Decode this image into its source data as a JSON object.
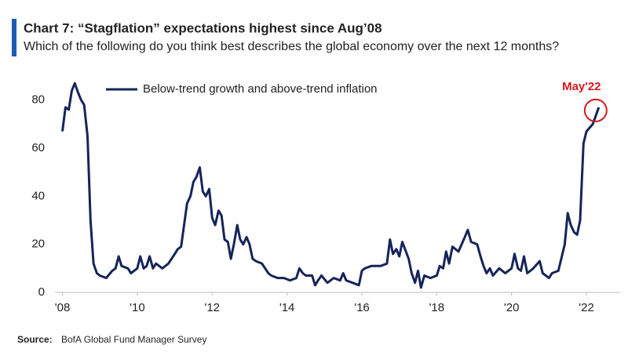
{
  "chart_data": {
    "type": "line",
    "title": "Chart 7: “Stagflation” expectations highest since Aug’08",
    "subtitle": "Which of the following do you think best describes the global economy over the next 12 months?",
    "annotation": "May'22",
    "source_label": "Source:",
    "source": "BofA Global Fund Manager Survey",
    "legend": "top-left",
    "xlim": [
      2007.8,
      2022.9
    ],
    "xticks": [
      {
        "value": 2008,
        "label": "'08"
      },
      {
        "value": 2010,
        "label": "'10"
      },
      {
        "value": 2012,
        "label": "'12"
      },
      {
        "value": 2014,
        "label": "'14"
      },
      {
        "value": 2016,
        "label": "'16"
      },
      {
        "value": 2018,
        "label": "'18"
      },
      {
        "value": 2020,
        "label": "'20"
      },
      {
        "value": 2022,
        "label": "'22"
      }
    ],
    "ylim": [
      0,
      90
    ],
    "yticks": [
      0,
      20,
      40,
      60,
      80
    ],
    "x": [
      2008.0,
      2008.08,
      2008.17,
      2008.25,
      2008.33,
      2008.42,
      2008.5,
      2008.58,
      2008.67,
      2008.75,
      2008.83,
      2008.92,
      2009.0,
      2009.17,
      2009.33,
      2009.42,
      2009.5,
      2009.58,
      2009.75,
      2009.83,
      2010.0,
      2010.08,
      2010.17,
      2010.25,
      2010.33,
      2010.42,
      2010.5,
      2010.67,
      2010.83,
      2011.0,
      2011.08,
      2011.17,
      2011.25,
      2011.33,
      2011.42,
      2011.5,
      2011.58,
      2011.67,
      2011.75,
      2011.83,
      2011.92,
      2012.0,
      2012.08,
      2012.17,
      2012.25,
      2012.33,
      2012.42,
      2012.5,
      2012.58,
      2012.67,
      2012.75,
      2012.83,
      2012.92,
      2013.0,
      2013.08,
      2013.17,
      2013.33,
      2013.5,
      2013.58,
      2013.75,
      2013.92,
      2014.08,
      2014.25,
      2014.33,
      2014.42,
      2014.5,
      2014.67,
      2014.75,
      2014.83,
      2014.92,
      2015.08,
      2015.25,
      2015.42,
      2015.5,
      2015.58,
      2015.75,
      2015.92,
      2016.0,
      2016.08,
      2016.25,
      2016.5,
      2016.67,
      2016.75,
      2016.83,
      2016.92,
      2017.0,
      2017.08,
      2017.25,
      2017.33,
      2017.42,
      2017.5,
      2017.58,
      2017.67,
      2017.83,
      2018.0,
      2018.08,
      2018.17,
      2018.25,
      2018.33,
      2018.42,
      2018.58,
      2018.75,
      2018.83,
      2018.92,
      2019.08,
      2019.17,
      2019.25,
      2019.33,
      2019.42,
      2019.5,
      2019.67,
      2019.83,
      2020.0,
      2020.08,
      2020.17,
      2020.25,
      2020.33,
      2020.42,
      2020.58,
      2020.75,
      2020.83,
      2021.0,
      2021.08,
      2021.25,
      2021.42,
      2021.5,
      2021.58,
      2021.67,
      2021.75,
      2021.83,
      2021.92,
      2022.0,
      2022.17,
      2022.33
    ],
    "series": [
      {
        "name": "Below-trend growth and above-trend inflation",
        "color": "#16245a",
        "values": [
          67,
          77,
          76,
          84,
          87,
          83,
          80,
          78,
          65,
          30,
          12,
          8,
          7,
          6,
          9,
          10,
          15,
          11,
          10,
          8,
          10,
          15,
          10,
          11,
          15,
          10,
          12,
          10,
          12,
          16,
          18,
          19,
          28,
          37,
          40,
          46,
          48,
          52,
          42,
          40,
          43,
          31,
          28,
          34,
          32,
          22,
          21,
          14,
          20,
          28,
          22,
          20,
          23,
          20,
          14,
          13,
          12,
          8,
          7,
          6,
          6,
          5,
          6,
          10,
          8,
          7,
          7,
          3,
          5,
          7,
          4,
          6,
          5,
          8,
          5,
          4,
          3,
          9,
          10,
          11,
          11,
          12,
          22,
          16,
          18,
          15,
          21,
          14,
          8,
          4,
          9,
          2,
          7,
          6,
          7,
          11,
          10,
          17,
          12,
          19,
          17,
          23,
          26,
          21,
          20,
          15,
          11,
          8,
          10,
          7,
          10,
          8,
          10,
          16,
          10,
          9,
          15,
          8,
          10,
          13,
          8,
          6,
          8,
          9,
          20,
          33,
          28,
          25,
          24,
          30,
          62,
          67,
          70,
          77
        ]
      }
    ]
  }
}
